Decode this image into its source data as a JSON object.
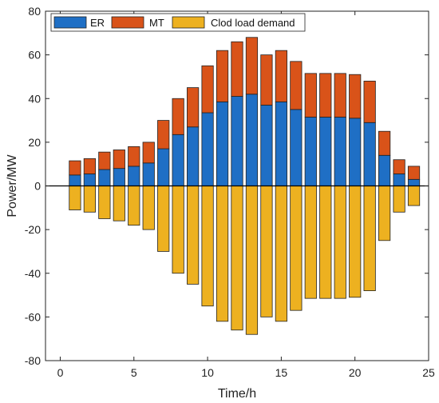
{
  "chart_data": {
    "type": "bar",
    "stacked": true,
    "xlabel": "Time/h",
    "ylabel": "Power/MW",
    "xlim": [
      -1,
      25
    ],
    "ylim": [
      -80,
      80
    ],
    "xticks": [
      0,
      5,
      10,
      15,
      20,
      25
    ],
    "yticks": [
      -80,
      -60,
      -40,
      -20,
      0,
      20,
      40,
      60,
      80
    ],
    "grid": false,
    "legend_position": "top-left",
    "x": [
      1,
      2,
      3,
      4,
      5,
      6,
      7,
      8,
      9,
      10,
      11,
      12,
      13,
      14,
      15,
      16,
      17,
      18,
      19,
      20,
      21,
      22,
      23,
      24
    ],
    "series": [
      {
        "name": "ER",
        "color": "#1f6fc5",
        "values": [
          5,
          5.5,
          7.5,
          8,
          9,
          10.5,
          17,
          23.5,
          27,
          33.5,
          38.5,
          41,
          42,
          37,
          38.5,
          35,
          31.5,
          31.5,
          31.5,
          31,
          29,
          14,
          5.5,
          3
        ]
      },
      {
        "name": "MT",
        "color": "#d95319",
        "values": [
          6.5,
          7,
          8,
          8.5,
          9,
          9.5,
          13,
          16.5,
          18,
          21.5,
          23.5,
          25,
          26,
          23,
          23.5,
          22,
          20,
          20,
          20,
          20,
          19,
          11,
          6.5,
          6
        ]
      },
      {
        "name": "Clod load demand",
        "color": "#edb120",
        "values": [
          -11,
          -12,
          -15,
          -16,
          -18,
          -20,
          -30,
          -40,
          -45,
          -55,
          -62,
          -66,
          -68,
          -60,
          -62,
          -57,
          -51.5,
          -51.5,
          -51.5,
          -51,
          -48,
          -25,
          -12,
          -9
        ]
      }
    ]
  }
}
